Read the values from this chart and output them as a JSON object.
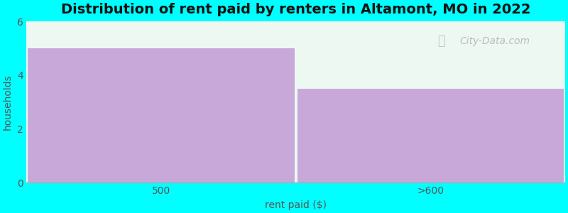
{
  "title": "Distribution of rent paid by renters in Altamont, MO in 2022",
  "categories": [
    "500",
    ">600"
  ],
  "values": [
    5,
    3.5
  ],
  "bar_color": "#c8a8d8",
  "background_color": "#00ffff",
  "plot_bg_color": "#eef8f2",
  "xlabel": "rent paid ($)",
  "ylabel": "households",
  "ylim": [
    0,
    6
  ],
  "yticks": [
    0,
    2,
    4,
    6
  ],
  "title_fontsize": 14,
  "axis_label_fontsize": 10,
  "watermark": "City-Data.com",
  "label_color": "#555555"
}
